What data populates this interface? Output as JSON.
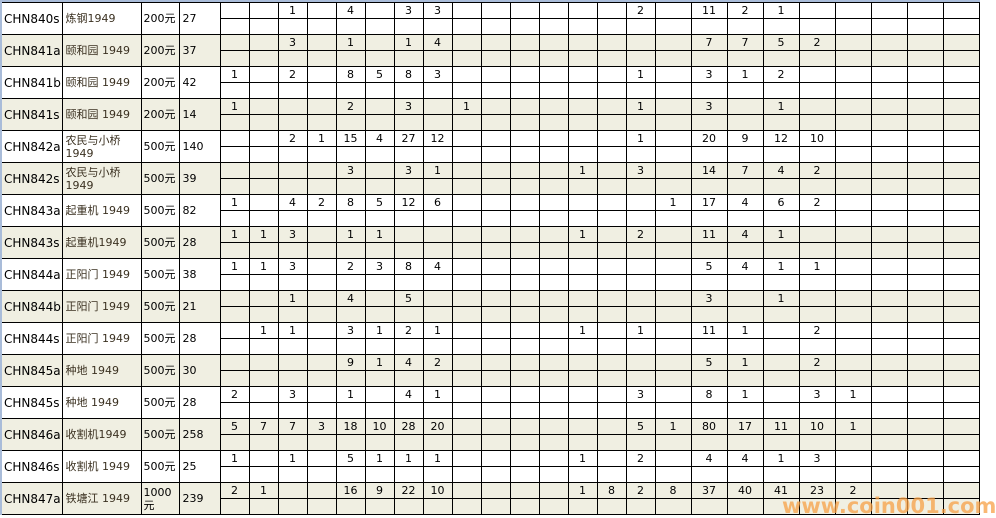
{
  "columns_numeric": 24,
  "colors": {
    "alt_row": "#f0efe2",
    "watermark": "#f7a046",
    "frame": "#a9bcd9"
  },
  "rows": [
    {
      "code": "CHN840s",
      "name": "炼钢1949",
      "denom": "200元",
      "count": "27",
      "cells": {
        "2": "1",
        "4": "4",
        "6": "3",
        "7": "3",
        "14": "2",
        "16": "11",
        "17": "2",
        "18": "1"
      }
    },
    {
      "code": "CHN841a",
      "name": "颐和园 1949",
      "denom": "200元",
      "count": "37",
      "cells": {
        "2": "3",
        "4": "1",
        "6": "1",
        "7": "4",
        "16": "7",
        "17": "7",
        "18": "5",
        "19": "2"
      }
    },
    {
      "code": "CHN841b",
      "name": "颐和园 1949",
      "denom": "200元",
      "count": "42",
      "cells": {
        "0": "1",
        "2": "2",
        "4": "8",
        "5": "5",
        "6": "8",
        "7": "3",
        "14": "1",
        "16": "3",
        "17": "1",
        "18": "2"
      }
    },
    {
      "code": "CHN841s",
      "name": "颐和园 1949",
      "denom": "200元",
      "count": "14",
      "cells": {
        "0": "1",
        "4": "2",
        "6": "3",
        "8": "1",
        "14": "1",
        "16": "3",
        "18": "1"
      }
    },
    {
      "code": "CHN842a",
      "name": "农民与小桥1949",
      "denom": "500元",
      "count": "140",
      "cells": {
        "2": "2",
        "3": "1",
        "4": "15",
        "5": "4",
        "6": "27",
        "7": "12",
        "14": "1",
        "16": "20",
        "17": "9",
        "18": "12",
        "19": "10"
      }
    },
    {
      "code": "CHN842s",
      "name": "农民与小桥1949",
      "denom": "500元",
      "count": "39",
      "cells": {
        "4": "3",
        "6": "3",
        "7": "1",
        "12": "1",
        "14": "3",
        "16": "14",
        "17": "7",
        "18": "4",
        "19": "2"
      }
    },
    {
      "code": "CHN843a",
      "name": "起重机 1949",
      "denom": "500元",
      "count": "82",
      "cells": {
        "0": "1",
        "2": "4",
        "3": "2",
        "4": "8",
        "5": "5",
        "6": "12",
        "7": "6",
        "15": "1",
        "16": "17",
        "17": "4",
        "18": "6",
        "19": "2"
      }
    },
    {
      "code": "CHN843s",
      "name": "起重机1949",
      "denom": "500元",
      "count": "28",
      "cells": {
        "0": "1",
        "1": "1",
        "2": "3",
        "4": "1",
        "5": "1",
        "12": "1",
        "14": "2",
        "16": "11",
        "17": "4",
        "18": "1"
      }
    },
    {
      "code": "CHN844a",
      "name": "正阳门 1949",
      "denom": "500元",
      "count": "38",
      "cells": {
        "0": "1",
        "1": "1",
        "2": "3",
        "4": "2",
        "5": "3",
        "6": "8",
        "7": "4",
        "16": "5",
        "17": "4",
        "18": "1",
        "19": "1"
      }
    },
    {
      "code": "CHN844b",
      "name": "正阳门  1949",
      "denom": "500元",
      "count": "21",
      "cells": {
        "2": "1",
        "4": "4",
        "6": "5",
        "16": "3",
        "18": "1"
      }
    },
    {
      "code": "CHN844s",
      "name": "正阳门 1949",
      "denom": "500元",
      "count": "28",
      "cells": {
        "1": "1",
        "2": "1",
        "4": "3",
        "5": "1",
        "6": "2",
        "7": "1",
        "12": "1",
        "14": "1",
        "16": "11",
        "17": "1",
        "19": "2"
      }
    },
    {
      "code": "CHN845a",
      "name": "种地 1949",
      "denom": "500元",
      "count": "30",
      "cells": {
        "4": "9",
        "5": "1",
        "6": "4",
        "7": "2",
        "16": "5",
        "17": "1",
        "19": "2"
      }
    },
    {
      "code": "CHN845s",
      "name": "种地 1949",
      "denom": "500元",
      "count": "28",
      "cells": {
        "0": "2",
        "2": "3",
        "4": "1",
        "6": "4",
        "7": "1",
        "14": "3",
        "16": "8",
        "17": "1",
        "19": "3",
        "20": "1"
      }
    },
    {
      "code": "CHN846a",
      "name": "收割机1949",
      "denom": "500元",
      "count": "258",
      "cells": {
        "0": "5",
        "1": "7",
        "2": "7",
        "3": "3",
        "4": "18",
        "5": "10",
        "6": "28",
        "7": "20",
        "14": "5",
        "15": "1",
        "16": "80",
        "17": "17",
        "18": "11",
        "19": "10",
        "20": "1"
      }
    },
    {
      "code": "CHN846s",
      "name": "收割机 1949",
      "denom": "500元",
      "count": "25",
      "cells": {
        "0": "1",
        "2": "1",
        "4": "5",
        "5": "1",
        "6": "1",
        "7": "1",
        "12": "1",
        "14": "2",
        "16": "4",
        "17": "4",
        "18": "1",
        "19": "3"
      }
    },
    {
      "code": "CHN847a",
      "name": "铁塘江 1949",
      "denom": "1000元",
      "count": "239",
      "cells": {
        "0": "2",
        "1": "1",
        "4": "16",
        "5": "9",
        "6": "22",
        "7": "10",
        "12": "1",
        "13": "8",
        "14": "2",
        "15": "8",
        "16": "37",
        "17": "40",
        "18": "41",
        "19": "23",
        "20": "2"
      }
    }
  ],
  "watermark": "www.coin001.com"
}
